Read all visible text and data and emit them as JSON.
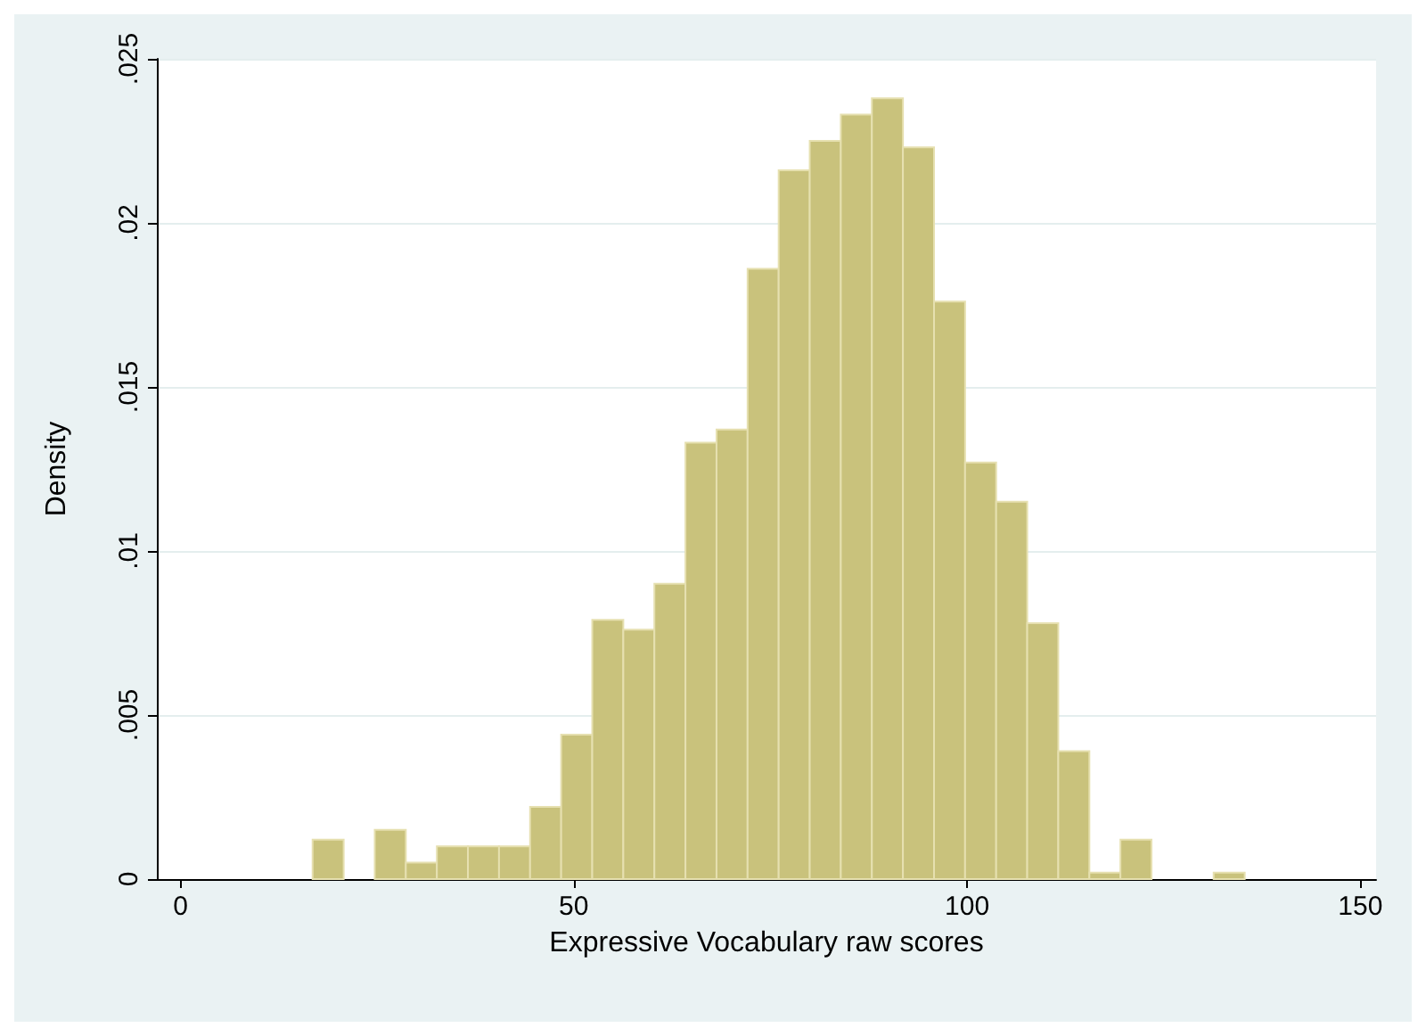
{
  "chart_data": {
    "type": "histogram",
    "xlabel": "Expressive Vocabulary raw scores",
    "ylabel": "Density",
    "bins": [
      16.8,
      20.75,
      24.7,
      28.65,
      32.6,
      36.55,
      40.5,
      44.45,
      48.4,
      52.35,
      56.3,
      60.25,
      64.2,
      68.15,
      72.1,
      76.05,
      80,
      83.95,
      87.9,
      91.85,
      95.8,
      99.75,
      103.7,
      107.65,
      111.6,
      115.55,
      119.5,
      123.45,
      127.4,
      131.35,
      135.3
    ],
    "values": [
      0.0012,
      0,
      0.0015,
      0.0005,
      0.001,
      0.001,
      0.001,
      0.0022,
      0.0044,
      0.0079,
      0.0076,
      0.009,
      0.0133,
      0.0137,
      0.0186,
      0.0216,
      0.0225,
      0.0233,
      0.0238,
      0.0223,
      0.0176,
      0.0127,
      0.0115,
      0.0078,
      0.0039,
      0.0002,
      0.0012,
      0,
      0,
      0.0002
    ],
    "color": "#c9c27c",
    "xlim": [
      -3,
      152
    ],
    "xticks": [
      0,
      50,
      100,
      150
    ],
    "ylim": [
      0,
      0.025
    ],
    "yticks": [
      {
        "value": 0,
        "label": "0"
      },
      {
        "value": 0.005,
        "label": ".005"
      },
      {
        "value": 0.01,
        "label": ".01"
      },
      {
        "value": 0.015,
        "label": ".015"
      },
      {
        "value": 0.02,
        "label": ".02"
      },
      {
        "value": 0.025,
        "label": ".025"
      }
    ],
    "grid": "y"
  }
}
